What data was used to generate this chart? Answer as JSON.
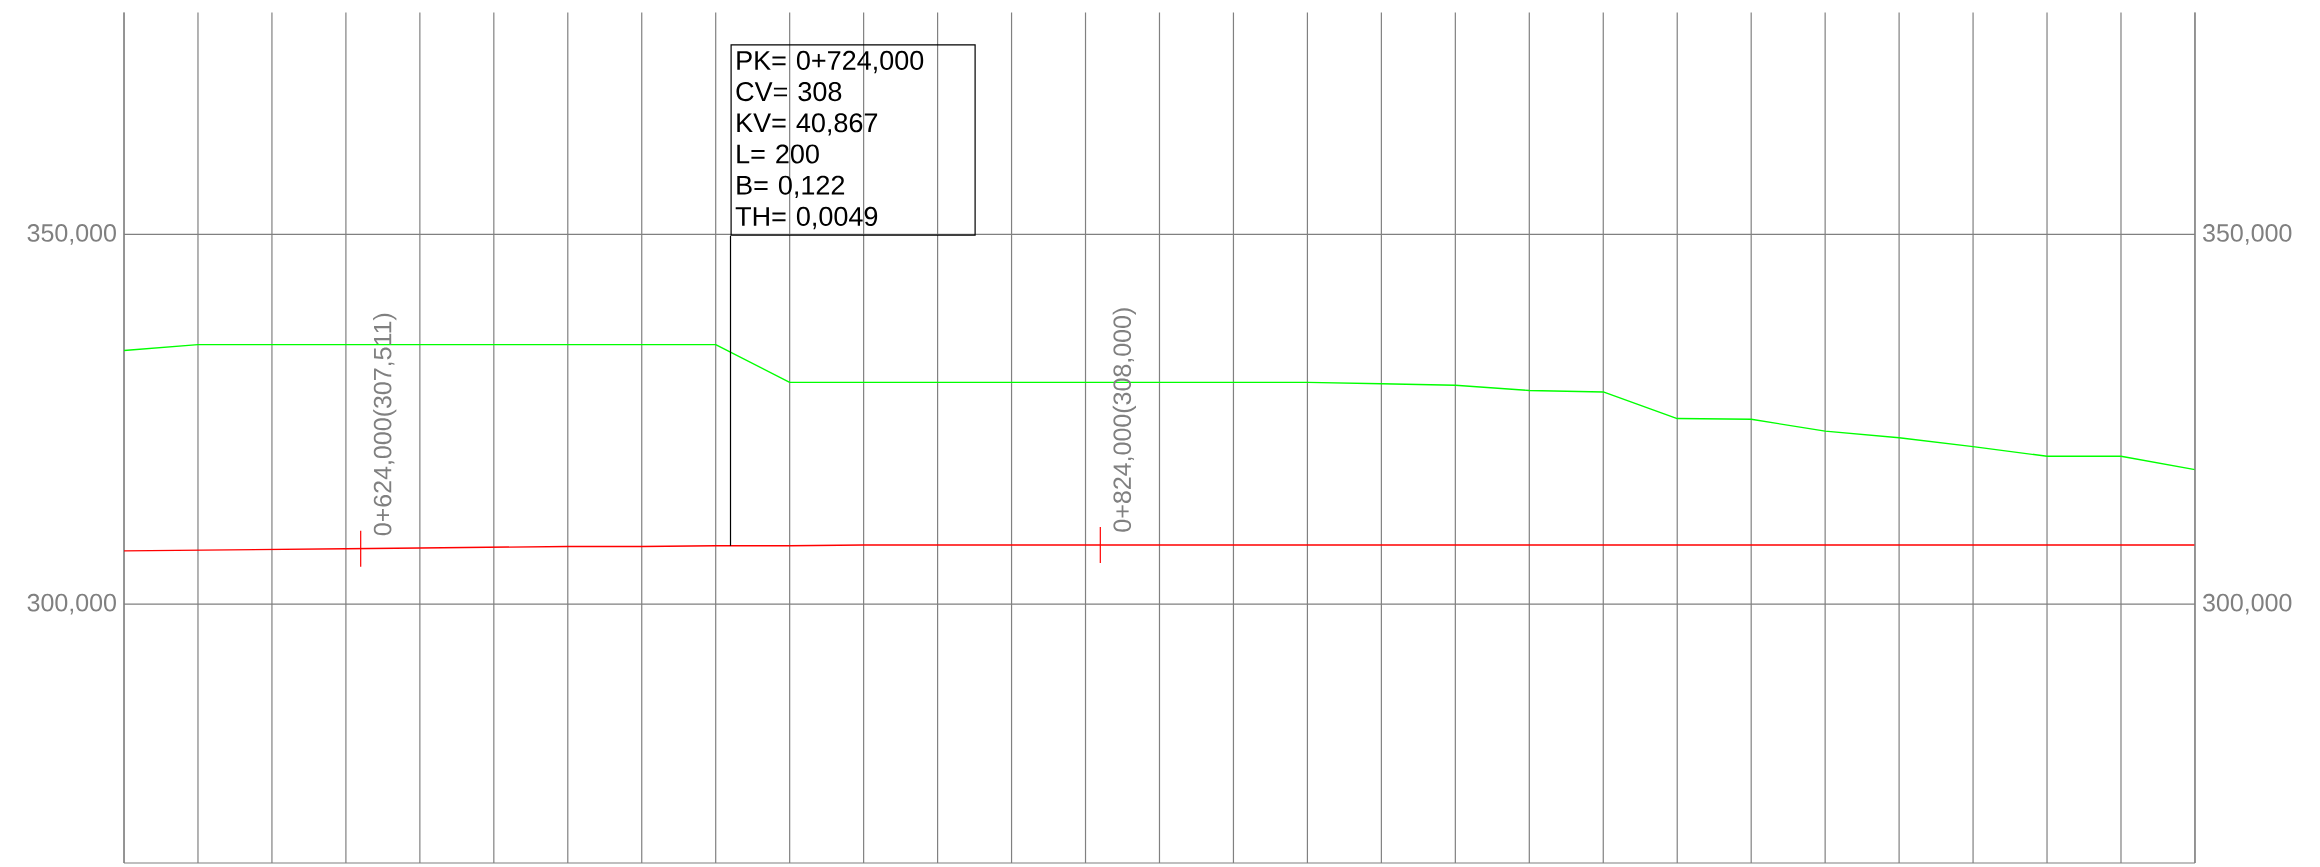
{
  "chart_data": {
    "type": "line",
    "ylim": [
      265,
      380
    ],
    "yticks": [
      {
        "value": 300,
        "label": "300,000"
      },
      {
        "value": 350,
        "label": "350,000"
      }
    ],
    "y2lim": [
      265,
      380
    ],
    "y2ticks": [
      {
        "value": 300,
        "label": "300,000"
      },
      {
        "value": 350,
        "label": "350,000"
      }
    ],
    "tick_labels": "y",
    "grid": true,
    "categories": [
      null,
      null,
      null,
      null,
      null,
      null,
      null,
      null,
      null,
      null,
      null,
      null,
      null,
      null,
      null,
      null,
      null,
      null,
      null,
      null,
      null,
      null,
      null,
      null,
      null,
      null,
      null,
      null,
      null
    ],
    "series": [
      {
        "color": "#00ff00",
        "values": [
          334.3,
          335.1,
          335.1,
          335.1,
          335.1,
          335.1,
          335.1,
          335.1,
          335.1,
          330.0,
          330.0,
          330.0,
          330.0,
          330.0,
          330.0,
          330.0,
          330.0,
          329.8,
          329.6,
          328.9,
          328.7,
          325.1,
          325.0,
          323.4,
          322.5,
          321.3,
          320.0,
          320.0,
          318.2
        ]
      },
      {
        "color": "#ff0000",
        "values": [
          307.2,
          307.3,
          307.4,
          307.5,
          307.6,
          307.7,
          307.8,
          307.8,
          307.9,
          307.9,
          308,
          308,
          308,
          308,
          308,
          308,
          308,
          308,
          308,
          308,
          308,
          308,
          308,
          308,
          308,
          308,
          308,
          308,
          308
        ]
      }
    ],
    "annotations": [
      {
        "text": "0+624,000(307,511)",
        "y": 307.511
      },
      "PK= 0+724,000",
      "CV= 308",
      "KV= 40,867",
      "L= 200",
      "B= 0,122",
      "TH= 0,0049",
      {
        "text": "0+824,000(308,000)",
        "y": 308
      }
    ]
  }
}
